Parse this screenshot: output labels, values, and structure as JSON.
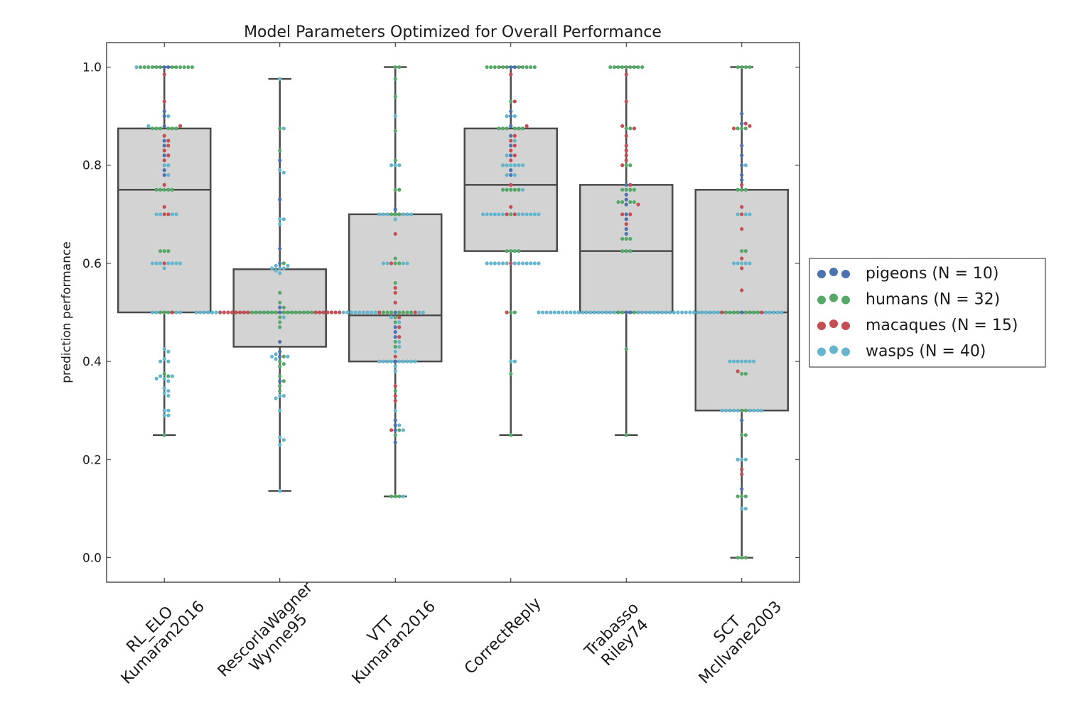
{
  "chart_data": {
    "type": "box",
    "title": "Model Parameters Optimized for Overall Performance",
    "xlabel": "",
    "ylabel": "prediction performance",
    "ylim": [
      -0.05,
      1.05
    ],
    "yticks": [
      0.0,
      0.2,
      0.4,
      0.6,
      0.8,
      1.0
    ],
    "ytick_labels": [
      "0.0",
      "0.2",
      "0.4",
      "0.6",
      "0.8",
      "1.0"
    ],
    "grid": false,
    "legend_position": "right",
    "categories": [
      {
        "line1": "RL_ELO",
        "line2": "Kumaran2016"
      },
      {
        "line1": "RescorlaWagner",
        "line2": "Wynne95"
      },
      {
        "line1": "VTT",
        "line2": "Kumaran2016"
      },
      {
        "line1": "CorrectReply",
        "line2": ""
      },
      {
        "line1": "Trabasso",
        "line2": "Riley74"
      },
      {
        "line1": "SCT",
        "line2": "McIlvane2003"
      }
    ],
    "boxes": [
      {
        "whisker_low": 0.25,
        "q1": 0.5,
        "median": 0.75,
        "q3": 0.875,
        "whisker_high": 1.0
      },
      {
        "whisker_low": 0.136,
        "q1": 0.43,
        "median": 0.5,
        "q3": 0.588,
        "whisker_high": 0.976
      },
      {
        "whisker_low": 0.125,
        "q1": 0.4,
        "median": 0.494,
        "q3": 0.7,
        "whisker_high": 1.0
      },
      {
        "whisker_low": 0.25,
        "q1": 0.625,
        "median": 0.76,
        "q3": 0.875,
        "whisker_high": 1.0
      },
      {
        "whisker_low": 0.25,
        "q1": 0.5,
        "median": 0.625,
        "q3": 0.76,
        "whisker_high": 1.0
      },
      {
        "whisker_low": 0.0,
        "q1": 0.3,
        "median": 0.5,
        "q3": 0.75,
        "whisker_high": 1.0
      }
    ],
    "series": [
      {
        "name": "pigeons (N = 10)",
        "color": "#4c72b0",
        "values": [
          [
            1.0,
            1.0,
            0.91,
            0.9,
            0.88,
            0.85,
            0.84,
            0.82,
            0.79,
            0.78
          ],
          [
            0.81,
            0.73,
            0.63,
            0.6,
            0.51,
            0.5,
            0.44,
            0.42,
            0.41,
            0.36
          ],
          [
            0.71,
            0.5,
            0.47,
            0.46,
            0.45,
            0.4,
            0.28,
            0.27,
            0.26,
            0.235
          ],
          [
            1.0,
            1.0,
            0.91,
            0.9,
            0.88,
            0.86,
            0.84,
            0.82,
            0.79,
            0.78
          ],
          [
            0.76,
            0.74,
            0.73,
            0.72,
            0.7,
            0.69,
            0.67,
            0.66,
            0.5,
            0.5
          ],
          [
            0.905,
            0.885,
            0.84,
            0.82,
            0.8,
            0.78,
            0.77,
            0.5,
            0.28,
            0.14
          ]
        ]
      },
      {
        "name": "humans (N = 32)",
        "color": "#55a868",
        "values": [
          [
            1.0,
            1.0,
            1.0,
            1.0,
            1.0,
            1.0,
            1.0,
            1.0,
            1.0,
            1.0,
            1.0,
            1.0,
            0.875,
            0.875,
            0.875,
            0.875,
            0.875,
            0.875,
            0.75,
            0.75,
            0.75,
            0.75,
            0.75,
            0.625,
            0.625,
            0.625,
            0.5,
            0.5,
            0.5,
            0.375,
            0.37,
            0.25
          ],
          [
            0.875,
            0.83,
            0.6,
            0.54,
            0.52,
            0.51,
            0.5,
            0.5,
            0.5,
            0.5,
            0.5,
            0.5,
            0.5,
            0.5,
            0.5,
            0.5,
            0.5,
            0.5,
            0.5,
            0.5,
            0.5,
            0.49,
            0.48,
            0.47,
            0.41,
            0.4,
            0.395,
            0.39,
            0.37,
            0.36,
            0.35,
            0.34
          ],
          [
            1.0,
            1.0,
            0.976,
            0.94,
            0.87,
            0.81,
            0.75,
            0.75,
            0.7,
            0.7,
            0.7,
            0.61,
            0.6,
            0.6,
            0.56,
            0.5,
            0.5,
            0.5,
            0.5,
            0.5,
            0.5,
            0.5,
            0.49,
            0.48,
            0.44,
            0.43,
            0.34,
            0.26,
            0.25,
            0.125,
            0.125,
            0.125
          ],
          [
            1.0,
            1.0,
            1.0,
            1.0,
            1.0,
            1.0,
            1.0,
            1.0,
            1.0,
            1.0,
            1.0,
            0.93,
            0.875,
            0.875,
            0.875,
            0.875,
            0.875,
            0.875,
            0.75,
            0.75,
            0.75,
            0.75,
            0.75,
            0.625,
            0.625,
            0.625,
            0.625,
            0.5,
            0.5,
            0.375,
            0.25,
            0.7
          ],
          [
            1.0,
            1.0,
            1.0,
            1.0,
            1.0,
            1.0,
            1.0,
            1.0,
            1.0,
            0.875,
            0.875,
            0.8,
            0.8,
            0.75,
            0.75,
            0.75,
            0.75,
            0.725,
            0.725,
            0.725,
            0.725,
            0.65,
            0.65,
            0.65,
            0.625,
            0.625,
            0.625,
            0.5,
            0.5,
            0.5,
            0.425,
            0.25
          ],
          [
            1.0,
            1.0,
            1.0,
            1.0,
            0.875,
            0.875,
            0.875,
            0.75,
            0.75,
            0.75,
            0.625,
            0.625,
            0.5,
            0.5,
            0.5,
            0.5,
            0.5,
            0.5,
            0.375,
            0.375,
            0.3,
            0.3,
            0.25,
            0.25,
            0.125,
            0.125,
            0.125,
            0.0,
            0.0,
            0.0,
            0.5,
            0.5
          ]
        ]
      },
      {
        "name": "macaques (N = 15)",
        "color": "#c44e52",
        "values": [
          [
            0.985,
            0.93,
            0.88,
            0.86,
            0.85,
            0.84,
            0.83,
            0.82,
            0.81,
            0.76,
            0.715,
            0.7,
            0.7,
            0.6,
            0.5
          ],
          [
            0.5,
            0.5,
            0.5,
            0.5,
            0.5,
            0.5,
            0.5,
            0.5,
            0.5,
            0.5,
            0.5,
            0.5,
            0.5,
            0.5,
            0.5
          ],
          [
            0.66,
            0.6,
            0.55,
            0.54,
            0.52,
            0.5,
            0.5,
            0.49,
            0.47,
            0.45,
            0.41,
            0.35,
            0.33,
            0.32,
            0.26
          ],
          [
            0.985,
            0.93,
            0.88,
            0.86,
            0.85,
            0.84,
            0.83,
            0.82,
            0.81,
            0.76,
            0.715,
            0.7,
            0.7,
            0.6,
            0.5
          ],
          [
            0.985,
            0.93,
            0.88,
            0.875,
            0.86,
            0.84,
            0.83,
            0.82,
            0.81,
            0.8,
            0.76,
            0.72,
            0.7,
            0.7,
            0.68
          ],
          [
            0.885,
            0.88,
            0.875,
            0.76,
            0.715,
            0.7,
            0.67,
            0.61,
            0.59,
            0.545,
            0.5,
            0.5,
            0.38,
            0.18,
            0.17
          ]
        ]
      },
      {
        "name": "wasps (N = 40)",
        "color": "#64b5cd",
        "values": [
          [
            1.0,
            0.9,
            0.88,
            0.8,
            0.8,
            0.78,
            0.7,
            0.7,
            0.7,
            0.6,
            0.6,
            0.6,
            0.6,
            0.6,
            0.6,
            0.59,
            0.5,
            0.5,
            0.5,
            0.425,
            0.42,
            0.405,
            0.4,
            0.4,
            0.37,
            0.37,
            0.365,
            0.365,
            0.36,
            0.345,
            0.34,
            0.335,
            0.33,
            0.3,
            0.3,
            0.29,
            0.29,
            0.5,
            0.6,
            0.7
          ],
          [
            0.976,
            0.875,
            0.79,
            0.785,
            0.69,
            0.69,
            0.68,
            0.595,
            0.595,
            0.59,
            0.59,
            0.59,
            0.585,
            0.58,
            0.5,
            0.5,
            0.5,
            0.5,
            0.5,
            0.5,
            0.5,
            0.5,
            0.5,
            0.5,
            0.5,
            0.5,
            0.49,
            0.415,
            0.41,
            0.41,
            0.405,
            0.33,
            0.33,
            0.325,
            0.3,
            0.245,
            0.24,
            0.23,
            0.136,
            0.5
          ],
          [
            0.9,
            0.8,
            0.8,
            0.8,
            0.7,
            0.7,
            0.7,
            0.7,
            0.7,
            0.7,
            0.69,
            0.6,
            0.6,
            0.6,
            0.6,
            0.5,
            0.5,
            0.5,
            0.5,
            0.49,
            0.48,
            0.44,
            0.43,
            0.42,
            0.4,
            0.4,
            0.4,
            0.4,
            0.4,
            0.4,
            0.4,
            0.4,
            0.4,
            0.39,
            0.38,
            0.3,
            0.27,
            0.26,
            0.125,
            0.5
          ],
          [
            0.9,
            0.8,
            0.8,
            0.8,
            0.8,
            0.8,
            0.8,
            0.78,
            0.78,
            0.7,
            0.7,
            0.7,
            0.7,
            0.7,
            0.7,
            0.7,
            0.7,
            0.7,
            0.7,
            0.7,
            0.6,
            0.6,
            0.6,
            0.6,
            0.6,
            0.6,
            0.6,
            0.6,
            0.6,
            0.6,
            0.6,
            0.6,
            0.6,
            0.4,
            0.4,
            0.85,
            0.82,
            0.75,
            0.9,
            0.7
          ],
          [
            0.5,
            0.5,
            0.5,
            0.5,
            0.5,
            0.5,
            0.5,
            0.5,
            0.5,
            0.5,
            0.5,
            0.5,
            0.5,
            0.5,
            0.5,
            0.5,
            0.5,
            0.5,
            0.5,
            0.5,
            0.5,
            0.5,
            0.5,
            0.5,
            0.5,
            0.5,
            0.5,
            0.5,
            0.5,
            0.5,
            0.5,
            0.5,
            0.5,
            0.5,
            0.5,
            0.5,
            0.5,
            0.5,
            0.5,
            0.5
          ],
          [
            0.8,
            0.7,
            0.7,
            0.7,
            0.6,
            0.6,
            0.6,
            0.6,
            0.6,
            0.5,
            0.5,
            0.5,
            0.5,
            0.5,
            0.5,
            0.5,
            0.5,
            0.5,
            0.4,
            0.4,
            0.4,
            0.4,
            0.4,
            0.4,
            0.3,
            0.3,
            0.3,
            0.3,
            0.3,
            0.3,
            0.3,
            0.3,
            0.3,
            0.2,
            0.2,
            0.2,
            0.1,
            0.1,
            0.5,
            0.4
          ]
        ]
      }
    ],
    "colors": {
      "box_fill": "#d3d3d3",
      "box_edge": "#4a4a4a",
      "axes": "#222222"
    }
  }
}
